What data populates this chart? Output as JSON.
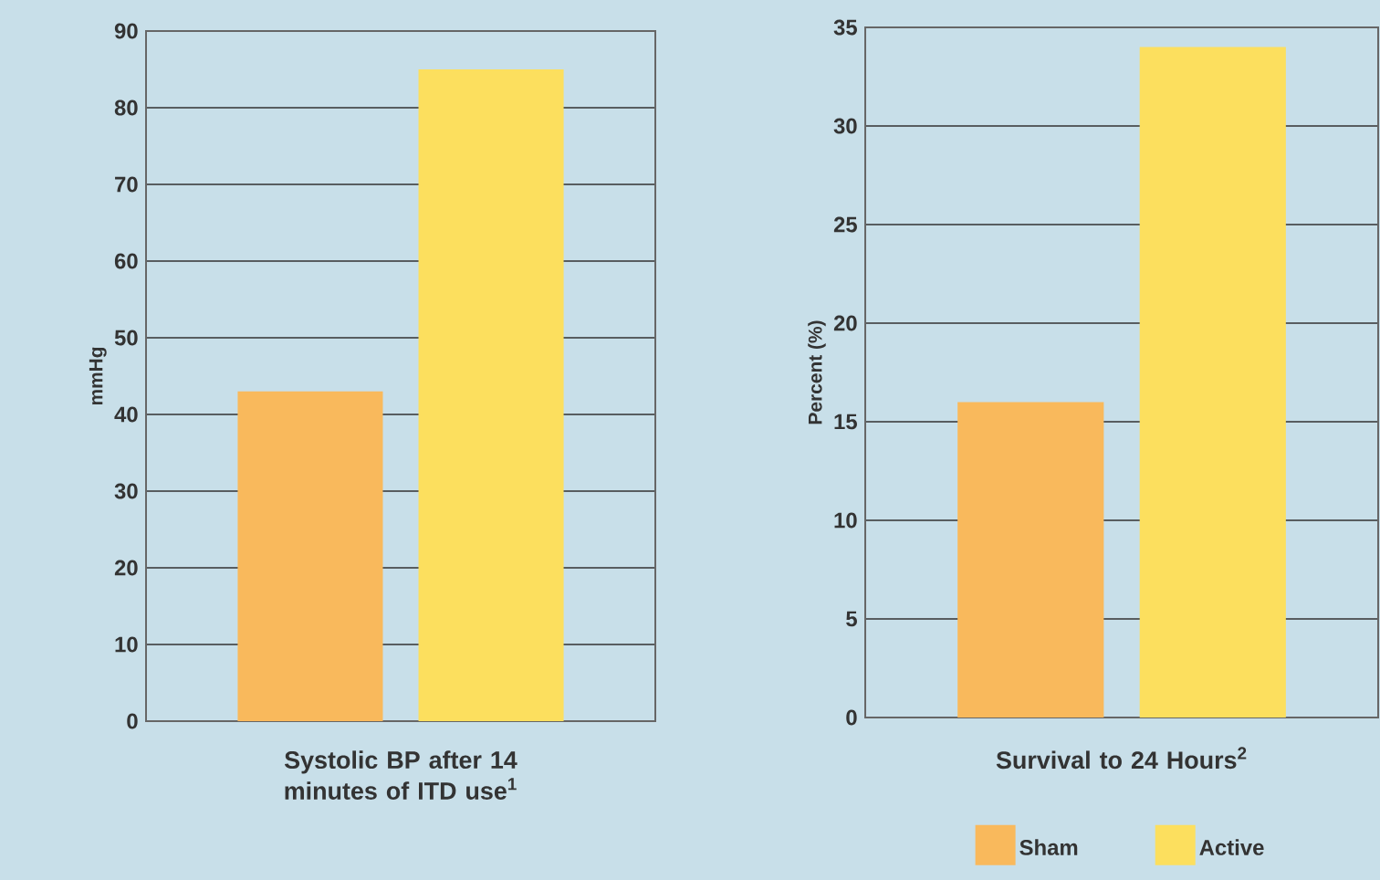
{
  "chart_data": [
    {
      "type": "bar",
      "categories": [
        null
      ],
      "xlabel": "Systolic BP after 14 minutes of ITD use$^{1}$",
      "ylabel": "mmHg",
      "ylim": [
        0,
        90
      ],
      "yticks": [
        0,
        10,
        20,
        30,
        40,
        50,
        60,
        70,
        80,
        90
      ],
      "grid": "y",
      "legend": false,
      "series": [
        {
          "color": "#f9b95c",
          "values": [
            43
          ]
        },
        {
          "color": "#fcdf5e",
          "values": [
            85
          ]
        }
      ]
    },
    {
      "type": "bar",
      "categories": [
        null
      ],
      "xlabel": "Survival to 24 Hours$^{2}$",
      "ylabel": "Percent (%)",
      "ylim": [
        0,
        35
      ],
      "yticks": [
        0,
        5,
        10,
        15,
        20,
        25,
        30,
        35
      ],
      "grid": "y",
      "legend": "bottom",
      "series": [
        {
          "name": "Sham",
          "color": "#f9b95c",
          "values": [
            16
          ]
        },
        {
          "name": "Active",
          "color": "#fcdf5e",
          "values": [
            34
          ]
        }
      ]
    }
  ]
}
